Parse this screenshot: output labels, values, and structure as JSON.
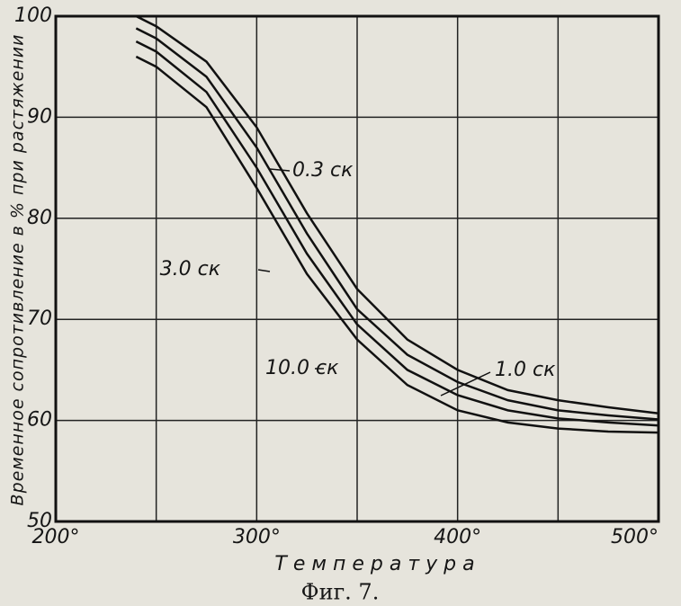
{
  "chart_data": {
    "type": "line",
    "ylabel": "Временное сопротивление в % при растяжении",
    "xlabel": "Температура",
    "caption": "Фиг. 7.",
    "x": [
      240,
      250,
      275,
      300,
      325,
      350,
      375,
      400,
      425,
      450,
      475,
      500
    ],
    "series": [
      {
        "name": "0.3 ск",
        "color": "#111111",
        "values": [
          100,
          99.0,
          95.5,
          89,
          80.5,
          73,
          68,
          65,
          63,
          62,
          61.3,
          60.7
        ]
      },
      {
        "name": "1.0 ск",
        "color": "#111111",
        "values": [
          98.8,
          97.8,
          94,
          87,
          78.5,
          71,
          66.5,
          63.8,
          62,
          61,
          60.5,
          60.1
        ]
      },
      {
        "name": "3.0 ск",
        "color": "#111111",
        "values": [
          97.5,
          96.5,
          92.5,
          85,
          76.5,
          69.5,
          65,
          62.5,
          61,
          60.2,
          59.8,
          59.5
        ]
      },
      {
        "name": "10.0 ск",
        "color": "#111111",
        "values": [
          96,
          95,
          91,
          83,
          74.5,
          68,
          63.5,
          61,
          59.8,
          59.2,
          58.9,
          58.8
        ]
      }
    ],
    "xlim": [
      200,
      500
    ],
    "ylim": [
      50,
      100
    ],
    "xticks": [
      {
        "value": 200,
        "label": "200°"
      },
      {
        "value": 250,
        "label": null
      },
      {
        "value": 300,
        "label": "300°"
      },
      {
        "value": 350,
        "label": null
      },
      {
        "value": 400,
        "label": "400°"
      },
      {
        "value": 450,
        "label": null
      },
      {
        "value": 500,
        "label": "500°"
      }
    ],
    "yticks": [
      50,
      60,
      70,
      80,
      90,
      100
    ],
    "grid": true
  }
}
